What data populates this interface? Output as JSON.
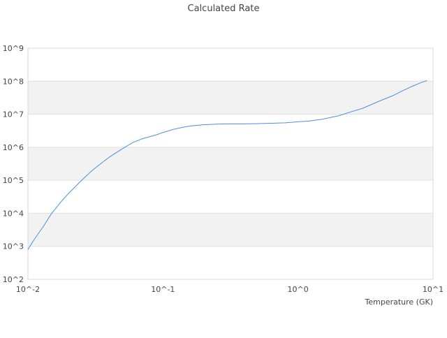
{
  "chart_data": {
    "type": "line",
    "title": "Calculated Rate",
    "xlabel": "Temperature (GK)",
    "ylabel": "",
    "x_scale": "log",
    "y_scale": "log",
    "xlim": [
      0.01,
      10
    ],
    "ylim": [
      100,
      1000000000
    ],
    "x_ticks": [
      {
        "value": 0.01,
        "label": "10^-2"
      },
      {
        "value": 0.1,
        "label": "10^-1"
      },
      {
        "value": 1,
        "label": "10^0"
      },
      {
        "value": 10,
        "label": "10^1"
      }
    ],
    "y_ticks": [
      {
        "value": 100,
        "label": "10^2"
      },
      {
        "value": 1000,
        "label": "10^3"
      },
      {
        "value": 10000,
        "label": "10^4"
      },
      {
        "value": 100000,
        "label": "10^5"
      },
      {
        "value": 1000000,
        "label": "10^6"
      },
      {
        "value": 10000000,
        "label": "10^7"
      },
      {
        "value": 100000000,
        "label": "10^8"
      },
      {
        "value": 1000000000,
        "label": "10^9"
      }
    ],
    "grid": "horizontal-bands",
    "legend": "none",
    "series": [
      {
        "color": "#4a90d9",
        "x": [
          0.01,
          0.011,
          0.013,
          0.015,
          0.018,
          0.02,
          0.025,
          0.03,
          0.035,
          0.04,
          0.05,
          0.06,
          0.07,
          0.08,
          0.09,
          0.1,
          0.12,
          0.14,
          0.16,
          0.2,
          0.25,
          0.3,
          0.4,
          0.5,
          0.6,
          0.7,
          0.8,
          0.9,
          1.0,
          1.2,
          1.5,
          2.0,
          2.5,
          3.0,
          4.0,
          5.0,
          6.0,
          7.0,
          8.0,
          9.0
        ],
        "y": [
          800,
          1500,
          4000,
          10000,
          25000,
          40000,
          100000,
          200000,
          330000,
          500000,
          900000,
          1400000,
          1800000,
          2100000,
          2400000,
          2800000,
          3500000,
          4000000,
          4400000,
          4800000,
          5000000,
          5100000,
          5100000,
          5200000,
          5300000,
          5400000,
          5500000,
          5700000,
          5900000,
          6200000,
          7000000,
          9000000,
          12000000,
          15000000,
          25000000,
          36000000,
          52000000,
          70000000,
          88000000,
          105000000
        ]
      }
    ]
  }
}
